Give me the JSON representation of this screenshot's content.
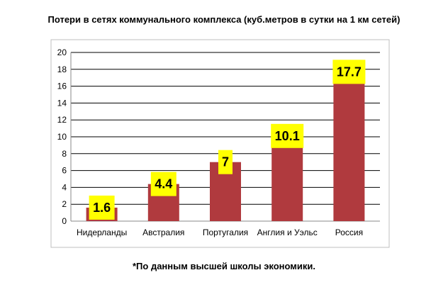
{
  "chart_data": {
    "type": "bar",
    "title": "Потери в сетях коммунального комплекса (куб.метров в сутки на 1 км сетей)",
    "categories": [
      "Нидерланды",
      "Австралия",
      "Португалия",
      "Англия и Уэльс",
      "Россия"
    ],
    "values": [
      1.6,
      4.4,
      7,
      10.1,
      17.7
    ],
    "data_labels": [
      "1.6",
      "4.4",
      "7",
      "10.1",
      "17.7"
    ],
    "yticks": [
      "0",
      "2",
      "4",
      "6",
      "8",
      "10",
      "12",
      "14",
      "16",
      "18",
      "20"
    ],
    "ylim": [
      0,
      20
    ],
    "xlabel": "",
    "ylabel": "",
    "grid": true,
    "legend": "none",
    "bar_color": "#b03a3e",
    "label_bg": "#ffff00"
  },
  "footnote": "*По данным высшей школы экономики."
}
